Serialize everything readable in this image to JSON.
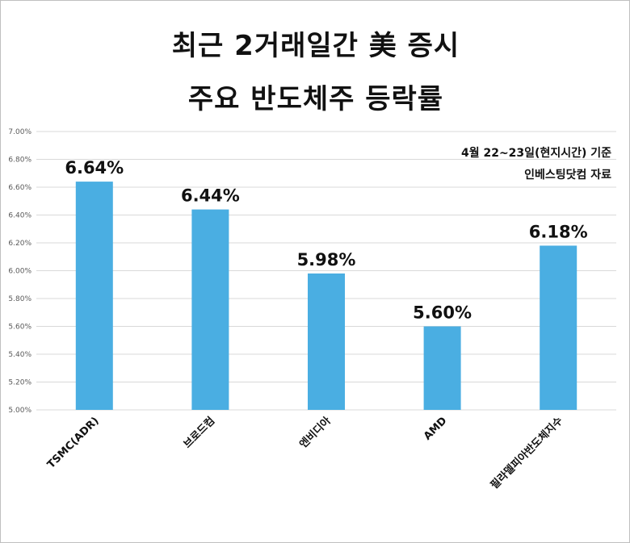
{
  "chart_data": {
    "type": "bar",
    "title_lines": [
      "최근 2거래일간 美 증시",
      "주요 반도체주 등락률"
    ],
    "annotations": [
      "4월 22~23일(현지시간) 기준",
      "인베스팅닷컴 자료"
    ],
    "categories": [
      "TSMC(ADR)",
      "브로드컴",
      "엔비디아",
      "AMD",
      "필라델피아반도체지수"
    ],
    "values": [
      6.64,
      6.44,
      5.98,
      5.6,
      6.18
    ],
    "value_labels": [
      "6.64%",
      "6.44%",
      "5.98%",
      "5.60%",
      "6.18%"
    ],
    "y_ticks": [
      5.0,
      5.2,
      5.4,
      5.6,
      5.8,
      6.0,
      6.2,
      6.4,
      6.6,
      6.8,
      7.0
    ],
    "y_tick_labels": [
      "5.00%",
      "5.20%",
      "5.40%",
      "5.60%",
      "5.80%",
      "6.00%",
      "6.20%",
      "6.40%",
      "6.60%",
      "6.80%",
      "7.00%"
    ],
    "ylim": [
      5.0,
      7.0
    ],
    "xlabel": "",
    "ylabel": "",
    "grid": true,
    "legend": "none",
    "bar_color": "#4aaee2",
    "grid_color": "#d9d9d9"
  }
}
